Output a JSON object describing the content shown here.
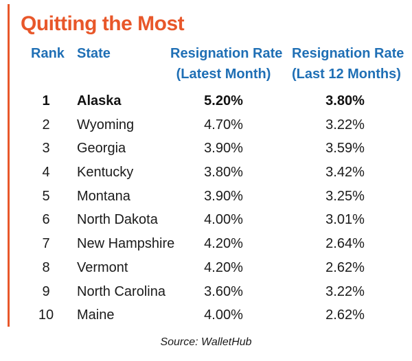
{
  "chart_data": {
    "type": "table",
    "title": "Quitting the Most",
    "columns": [
      "Rank",
      "State",
      "Resignation Rate (Latest Month)",
      "Resignation Rate (Last 12 Months)"
    ],
    "header_lines": [
      [
        "Rank"
      ],
      [
        "State"
      ],
      [
        "Resignation Rate",
        "(Latest Month)"
      ],
      [
        "Resignation Rate",
        "(Last 12 Months)"
      ]
    ],
    "rows": [
      {
        "rank": "1",
        "state": "Alaska",
        "latest_month": "5.20%",
        "last_12_months": "3.80%"
      },
      {
        "rank": "2",
        "state": "Wyoming",
        "latest_month": "4.70%",
        "last_12_months": "3.22%"
      },
      {
        "rank": "3",
        "state": "Georgia",
        "latest_month": "3.90%",
        "last_12_months": "3.59%"
      },
      {
        "rank": "4",
        "state": "Kentucky",
        "latest_month": "3.80%",
        "last_12_months": "3.42%"
      },
      {
        "rank": "5",
        "state": "Montana",
        "latest_month": "3.90%",
        "last_12_months": "3.25%"
      },
      {
        "rank": "6",
        "state": "North Dakota",
        "latest_month": "4.00%",
        "last_12_months": "3.01%"
      },
      {
        "rank": "7",
        "state": "New Hampshire",
        "latest_month": "4.20%",
        "last_12_months": "2.64%"
      },
      {
        "rank": "8",
        "state": "Vermont",
        "latest_month": "4.20%",
        "last_12_months": "2.62%"
      },
      {
        "rank": "9",
        "state": "North Carolina",
        "latest_month": "3.60%",
        "last_12_months": "3.22%"
      },
      {
        "rank": "10",
        "state": "Maine",
        "latest_month": "4.00%",
        "last_12_months": "2.62%"
      }
    ],
    "highlighted_rank": "1",
    "source": "Source: WalletHub"
  },
  "colors": {
    "title": "#e8572a",
    "accent_bar": "#e8572a",
    "header": "#1f6fb5",
    "text": "#1a1a1a"
  }
}
